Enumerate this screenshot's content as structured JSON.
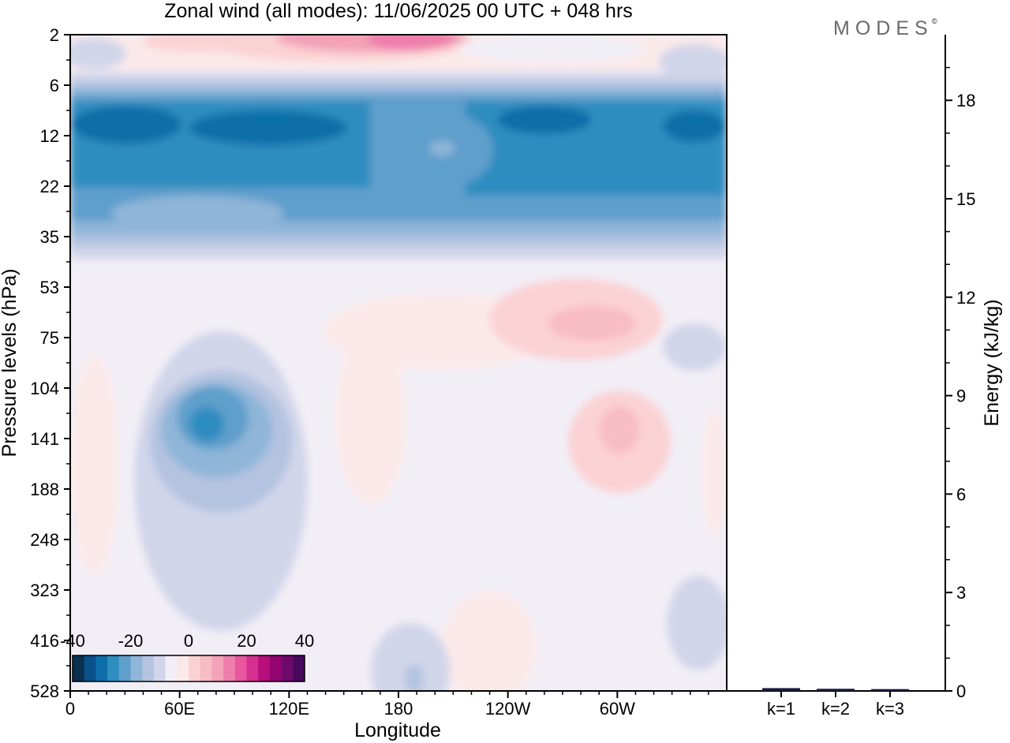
{
  "figure": {
    "title": "Zonal wind (all modes):  11/06/2025  00 UTC  + 048 hrs",
    "logo": "MODES",
    "logo_mark": "©"
  },
  "chart_data": [
    {
      "type": "heatmap",
      "xlabel": "Longitude",
      "ylabel": "Pressure levels (hPa)",
      "x_ticks": [
        {
          "lon": 0,
          "label": "0"
        },
        {
          "lon": 60,
          "label": "60E"
        },
        {
          "lon": 120,
          "label": "120E"
        },
        {
          "lon": 180,
          "label": "180"
        },
        {
          "lon": 240,
          "label": "120W"
        },
        {
          "lon": 300,
          "label": "60W"
        }
      ],
      "xlim": [
        0,
        360
      ],
      "y_levels": [
        "2",
        "6",
        "12",
        "22",
        "35",
        "53",
        "75",
        "104",
        "141",
        "188",
        "248",
        "323",
        "416",
        "528"
      ],
      "y_scale": "categorical, pressure increasing downward",
      "colorbar": {
        "range": [
          -40,
          40
        ],
        "step": 5,
        "tick_labels": [
          "-40",
          "-20",
          "0",
          "20",
          "40"
        ],
        "tick_values": [
          -40,
          -20,
          0,
          20,
          40
        ],
        "colors": [
          "#0b2f4f",
          "#08518a",
          "#0d6ea8",
          "#2f8dc0",
          "#5e9fcc",
          "#8fb5d8",
          "#b3c3e0",
          "#d1d5ea",
          "#f2eef6",
          "#fbe9e9",
          "#fbd2d4",
          "#f8bcc5",
          "#f3a2b8",
          "#ee7fab",
          "#e6579e",
          "#d52f8f",
          "#b60e7a",
          "#930570",
          "#6f0a6b",
          "#48095e"
        ]
      },
      "features": [
        {
          "lon_range": [
            0,
            360
          ],
          "level_range": [
            "6",
            "35"
          ],
          "value": -25,
          "description": "strong easterlies"
        },
        {
          "lon_range": [
            80,
            170
          ],
          "level_range": [
            "2",
            "6"
          ],
          "value": 15,
          "description": "westerlies aloft"
        },
        {
          "lon_range": [
            55,
            100
          ],
          "level_range": [
            "75",
            "188"
          ],
          "value": -20,
          "description": "easterly core"
        },
        {
          "lon_range": [
            260,
            320
          ],
          "level_range": [
            "53",
            "141"
          ],
          "value": 10,
          "description": "westerly patch"
        }
      ]
    },
    {
      "type": "bar",
      "categories": [
        "k=1",
        "k=2",
        "k=3"
      ],
      "values": [
        0.05,
        0.03,
        0.02
      ],
      "ylabel": "Energy (kJ/kg)",
      "ylim": [
        0,
        20
      ],
      "y_ticks": [
        0,
        3,
        6,
        9,
        12,
        15,
        18
      ]
    }
  ]
}
